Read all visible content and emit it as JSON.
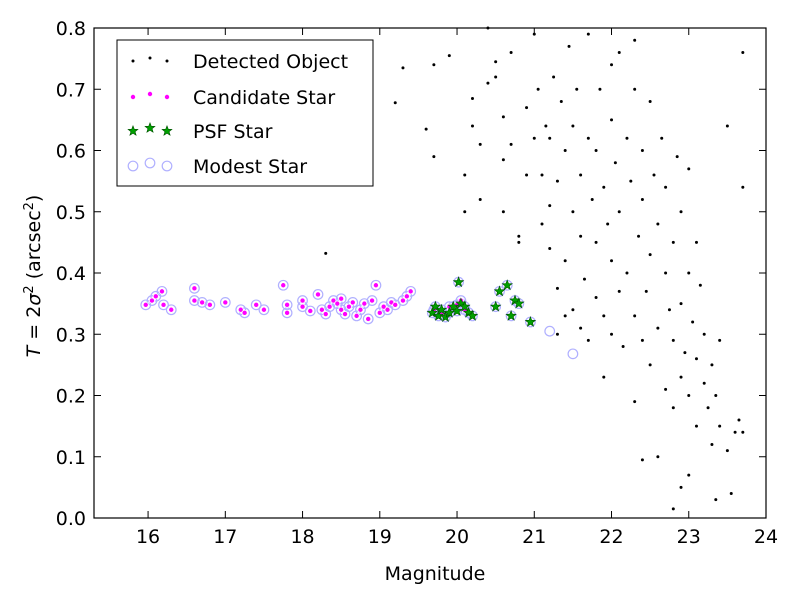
{
  "chart_data": {
    "type": "scatter",
    "xlabel": "Magnitude",
    "ylabel_parts": [
      "T",
      " = 2",
      "σ",
      "2",
      " (arcsec",
      "2",
      ")"
    ],
    "xlim": [
      15.3,
      24.0
    ],
    "ylim": [
      0.0,
      0.8
    ],
    "x_ticks": [
      "16",
      "17",
      "18",
      "19",
      "20",
      "21",
      "22",
      "23",
      "24"
    ],
    "x_tick_values": [
      16,
      17,
      18,
      19,
      20,
      21,
      22,
      23,
      24
    ],
    "y_ticks": [
      "0.0",
      "0.1",
      "0.2",
      "0.3",
      "0.4",
      "0.5",
      "0.6",
      "0.7",
      "0.8"
    ],
    "y_tick_values": [
      0.0,
      0.1,
      0.2,
      0.3,
      0.4,
      0.5,
      0.6,
      0.7,
      0.8
    ],
    "grid": false,
    "legend_position": "top-left",
    "series": [
      {
        "name": "Detected Object",
        "marker": "dot",
        "color": "#000000",
        "points": [
          [
            18.3,
            0.432
          ],
          [
            19.3,
            0.735
          ],
          [
            19.2,
            0.678
          ],
          [
            19.6,
            0.635
          ],
          [
            19.7,
            0.59
          ],
          [
            19.7,
            0.74
          ],
          [
            19.9,
            0.755
          ],
          [
            20.1,
            0.5
          ],
          [
            20.1,
            0.56
          ],
          [
            20.2,
            0.685
          ],
          [
            20.2,
            0.64
          ],
          [
            20.3,
            0.61
          ],
          [
            20.3,
            0.52
          ],
          [
            20.4,
            0.8
          ],
          [
            20.4,
            0.71
          ],
          [
            20.5,
            0.745
          ],
          [
            20.5,
            0.72
          ],
          [
            20.6,
            0.655
          ],
          [
            20.6,
            0.585
          ],
          [
            20.6,
            0.5
          ],
          [
            20.7,
            0.61
          ],
          [
            20.7,
            0.76
          ],
          [
            20.8,
            0.45
          ],
          [
            20.8,
            0.46
          ],
          [
            20.9,
            0.56
          ],
          [
            20.9,
            0.67
          ],
          [
            21.0,
            0.62
          ],
          [
            21.0,
            0.79
          ],
          [
            21.05,
            0.7
          ],
          [
            21.1,
            0.48
          ],
          [
            21.1,
            0.56
          ],
          [
            21.15,
            0.64
          ],
          [
            21.2,
            0.51
          ],
          [
            21.2,
            0.44
          ],
          [
            21.2,
            0.62
          ],
          [
            21.25,
            0.72
          ],
          [
            21.3,
            0.375
          ],
          [
            21.3,
            0.3
          ],
          [
            21.3,
            0.55
          ],
          [
            21.35,
            0.68
          ],
          [
            21.4,
            0.33
          ],
          [
            21.4,
            0.42
          ],
          [
            21.4,
            0.6
          ],
          [
            21.45,
            0.77
          ],
          [
            21.5,
            0.34
          ],
          [
            21.5,
            0.5
          ],
          [
            21.5,
            0.64
          ],
          [
            21.55,
            0.7
          ],
          [
            21.6,
            0.31
          ],
          [
            21.6,
            0.46
          ],
          [
            21.6,
            0.56
          ],
          [
            21.65,
            0.39
          ],
          [
            21.7,
            0.29
          ],
          [
            21.7,
            0.62
          ],
          [
            21.7,
            0.79
          ],
          [
            21.75,
            0.52
          ],
          [
            21.8,
            0.36
          ],
          [
            21.8,
            0.45
          ],
          [
            21.8,
            0.6
          ],
          [
            21.85,
            0.7
          ],
          [
            21.9,
            0.23
          ],
          [
            21.9,
            0.33
          ],
          [
            21.9,
            0.54
          ],
          [
            21.95,
            0.48
          ],
          [
            22.0,
            0.3
          ],
          [
            22.0,
            0.42
          ],
          [
            22.0,
            0.65
          ],
          [
            22.05,
            0.58
          ],
          [
            22.1,
            0.76
          ],
          [
            22.1,
            0.37
          ],
          [
            22.1,
            0.5
          ],
          [
            22.15,
            0.28
          ],
          [
            22.2,
            0.4
          ],
          [
            22.2,
            0.62
          ],
          [
            22.25,
            0.55
          ],
          [
            22.3,
            0.19
          ],
          [
            22.3,
            0.33
          ],
          [
            22.3,
            0.7
          ],
          [
            22.35,
            0.46
          ],
          [
            22.4,
            0.29
          ],
          [
            22.4,
            0.52
          ],
          [
            22.4,
            0.6
          ],
          [
            22.45,
            0.37
          ],
          [
            22.5,
            0.25
          ],
          [
            22.5,
            0.43
          ],
          [
            22.5,
            0.68
          ],
          [
            22.55,
            0.56
          ],
          [
            22.6,
            0.31
          ],
          [
            22.6,
            0.48
          ],
          [
            22.65,
            0.62
          ],
          [
            22.7,
            0.21
          ],
          [
            22.7,
            0.4
          ],
          [
            22.7,
            0.54
          ],
          [
            22.75,
            0.34
          ],
          [
            22.8,
            0.18
          ],
          [
            22.8,
            0.29
          ],
          [
            22.8,
            0.45
          ],
          [
            22.85,
            0.59
          ],
          [
            22.9,
            0.23
          ],
          [
            22.9,
            0.35
          ],
          [
            22.9,
            0.5
          ],
          [
            22.95,
            0.27
          ],
          [
            23.0,
            0.2
          ],
          [
            23.0,
            0.4
          ],
          [
            23.0,
            0.57
          ],
          [
            23.05,
            0.32
          ],
          [
            23.1,
            0.15
          ],
          [
            23.1,
            0.26
          ],
          [
            23.1,
            0.45
          ],
          [
            23.15,
            0.38
          ],
          [
            23.2,
            0.22
          ],
          [
            23.2,
            0.3
          ],
          [
            23.25,
            0.18
          ],
          [
            23.3,
            0.12
          ],
          [
            23.3,
            0.25
          ],
          [
            23.35,
            0.2
          ],
          [
            23.4,
            0.15
          ],
          [
            23.4,
            0.29
          ],
          [
            23.5,
            0.11
          ],
          [
            23.55,
            0.04
          ],
          [
            23.6,
            0.14
          ],
          [
            23.65,
            0.16
          ],
          [
            23.7,
            0.14
          ],
          [
            23.7,
            0.76
          ],
          [
            22.4,
            0.095
          ],
          [
            22.6,
            0.1
          ],
          [
            22.8,
            0.015
          ],
          [
            22.9,
            0.05
          ],
          [
            23.0,
            0.07
          ],
          [
            23.35,
            0.03
          ],
          [
            22.0,
            0.74
          ],
          [
            22.3,
            0.78
          ],
          [
            23.5,
            0.64
          ],
          [
            23.7,
            0.54
          ]
        ]
      },
      {
        "name": "Candidate Star",
        "marker": "circle-small",
        "color": "#ff00ff",
        "points": [
          [
            15.97,
            0.348
          ],
          [
            16.05,
            0.355
          ],
          [
            16.1,
            0.362
          ],
          [
            16.18,
            0.37
          ],
          [
            16.2,
            0.348
          ],
          [
            16.3,
            0.34
          ],
          [
            16.6,
            0.375
          ],
          [
            16.6,
            0.355
          ],
          [
            16.7,
            0.352
          ],
          [
            16.8,
            0.348
          ],
          [
            17.0,
            0.352
          ],
          [
            17.2,
            0.34
          ],
          [
            17.25,
            0.335
          ],
          [
            17.4,
            0.348
          ],
          [
            17.5,
            0.34
          ],
          [
            17.75,
            0.38
          ],
          [
            17.8,
            0.348
          ],
          [
            17.8,
            0.335
          ],
          [
            18.0,
            0.345
          ],
          [
            18.0,
            0.355
          ],
          [
            18.1,
            0.338
          ],
          [
            18.2,
            0.365
          ],
          [
            18.25,
            0.34
          ],
          [
            18.3,
            0.333
          ],
          [
            18.35,
            0.345
          ],
          [
            18.4,
            0.355
          ],
          [
            18.45,
            0.35
          ],
          [
            18.5,
            0.358
          ],
          [
            18.5,
            0.34
          ],
          [
            18.55,
            0.333
          ],
          [
            18.6,
            0.345
          ],
          [
            18.65,
            0.352
          ],
          [
            18.7,
            0.33
          ],
          [
            18.75,
            0.34
          ],
          [
            18.8,
            0.35
          ],
          [
            18.85,
            0.325
          ],
          [
            18.9,
            0.355
          ],
          [
            18.95,
            0.38
          ],
          [
            19.0,
            0.335
          ],
          [
            19.05,
            0.345
          ],
          [
            19.1,
            0.34
          ],
          [
            19.15,
            0.352
          ],
          [
            19.2,
            0.348
          ],
          [
            19.3,
            0.355
          ],
          [
            19.35,
            0.362
          ],
          [
            19.4,
            0.37
          ],
          [
            19.7,
            0.34
          ],
          [
            19.8,
            0.333
          ],
          [
            19.9,
            0.345
          ],
          [
            20.0,
            0.348
          ],
          [
            20.05,
            0.355
          ],
          [
            20.1,
            0.34
          ]
        ]
      },
      {
        "name": "PSF Star",
        "marker": "star",
        "color": "#00a000",
        "points": [
          [
            19.68,
            0.335
          ],
          [
            19.72,
            0.345
          ],
          [
            19.76,
            0.33
          ],
          [
            19.8,
            0.34
          ],
          [
            19.85,
            0.328
          ],
          [
            19.9,
            0.335
          ],
          [
            19.95,
            0.345
          ],
          [
            20.0,
            0.338
          ],
          [
            20.02,
            0.385
          ],
          [
            20.05,
            0.35
          ],
          [
            20.1,
            0.345
          ],
          [
            20.15,
            0.335
          ],
          [
            20.2,
            0.33
          ],
          [
            20.55,
            0.37
          ],
          [
            20.5,
            0.345
          ],
          [
            20.65,
            0.38
          ],
          [
            20.7,
            0.33
          ],
          [
            20.75,
            0.355
          ],
          [
            20.8,
            0.35
          ],
          [
            20.95,
            0.32
          ]
        ]
      },
      {
        "name": "Modest Star",
        "marker": "circle-open",
        "color": "#b0b0ff",
        "points": [
          [
            21.2,
            0.305
          ],
          [
            21.5,
            0.268
          ]
        ]
      }
    ]
  }
}
